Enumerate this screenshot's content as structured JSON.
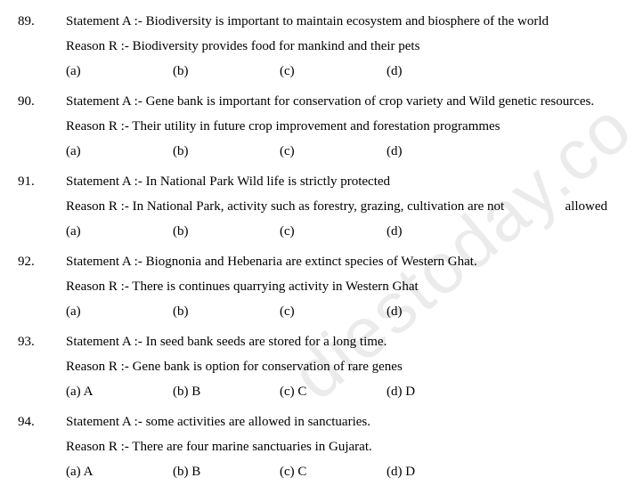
{
  "watermark": "diestoday.co",
  "questions": [
    {
      "num": "89.",
      "statementA": "Statement A :- Biodiversity is important to maintain ecosystem and biosphere of the world",
      "reasonR": "Reason R :- Biodiversity provides food for mankind and their pets",
      "options": [
        "(a)",
        "(b)",
        "(c)",
        "(d)"
      ]
    },
    {
      "num": "90.",
      "statementA": "Statement A :- Gene bank is important for conservation of crop variety and Wild genetic resources.",
      "reasonR": "Reason R :- Their utility in future crop improvement and forestation programmes",
      "options": [
        "(a)",
        "(b)",
        "(c)",
        "(d)"
      ]
    },
    {
      "num": "91.",
      "statementA": "Statement A :- In National Park Wild life is strictly protected",
      "reasonR_prefix": "Reason R :- In National Park, activity such as forestry, grazing, cultivation are not",
      "reasonR_suffix": "allowed",
      "options": [
        "(a)",
        "(b)",
        "(c)",
        "(d)"
      ]
    },
    {
      "num": "92.",
      "statementA": "Statement A :- Biognonia and Hebenaria are extinct species of Western Ghat.",
      "reasonR": "Reason R :- There is continues quarrying activity in Western Ghat",
      "options": [
        "(a)",
        "(b)",
        "(c)",
        "(d)"
      ]
    },
    {
      "num": "93.",
      "statementA": "Statement A :- In seed bank seeds are stored for a long time.",
      "reasonR": "Reason R :- Gene bank is option for conservation of rare genes",
      "options": [
        "(a) A",
        "(b) B",
        "(c) C",
        "(d) D"
      ]
    },
    {
      "num": "94.",
      "statementA": "Statement A :- some activities are allowed in sanctuaries.",
      "reasonR": "Reason R :- There are four marine sanctuaries in Gujarat.",
      "options": [
        "(a) A",
        "(b) B",
        "(c) C",
        "(d) D"
      ]
    }
  ]
}
